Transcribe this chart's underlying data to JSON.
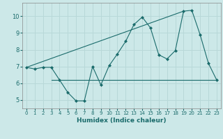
{
  "xlabel": "Humidex (Indice chaleur)",
  "ylabel": "",
  "bg_color": "#cce8e8",
  "grid_color": "#b8d8d8",
  "line_color": "#1a6b6b",
  "xlim": [
    -0.5,
    23.5
  ],
  "ylim": [
    4.5,
    10.8
  ],
  "xticks": [
    0,
    1,
    2,
    3,
    4,
    5,
    6,
    7,
    8,
    9,
    10,
    11,
    12,
    13,
    14,
    15,
    16,
    17,
    18,
    19,
    20,
    21,
    22,
    23
  ],
  "yticks": [
    5,
    6,
    7,
    8,
    9,
    10
  ],
  "curve1_x": [
    0,
    1,
    2,
    3,
    4,
    5,
    6,
    7,
    8,
    9,
    10,
    11,
    12,
    13,
    14,
    15,
    16,
    17,
    18,
    19,
    20,
    21,
    22,
    23
  ],
  "curve1_y": [
    6.95,
    6.85,
    6.95,
    6.95,
    6.2,
    5.45,
    4.95,
    4.95,
    7.0,
    5.9,
    7.05,
    7.75,
    8.5,
    9.5,
    9.95,
    9.3,
    7.7,
    7.45,
    7.95,
    10.3,
    10.35,
    8.9,
    7.2,
    6.2
  ],
  "curve2_x": [
    0,
    19
  ],
  "curve2_y": [
    6.95,
    10.3
  ],
  "curve3_x": [
    3,
    23
  ],
  "curve3_y": [
    6.2,
    6.2
  ]
}
